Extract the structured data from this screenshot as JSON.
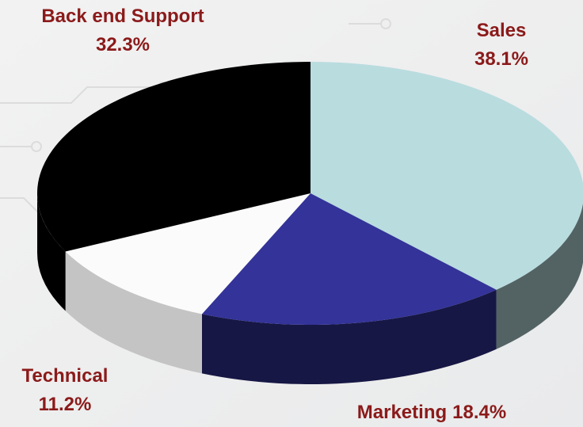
{
  "chart_data": {
    "type": "pie3d",
    "categories": [
      "Sales",
      "Marketing",
      "Technical",
      "Back end Support"
    ],
    "values": [
      38.1,
      18.4,
      11.2,
      32.3
    ],
    "value_labels": [
      "38.1%",
      "18.4%",
      "11.2%",
      "32.3%"
    ],
    "colors": [
      "#b9dcdf",
      "#333399",
      "#fbfbfb",
      "#000000"
    ],
    "label_color": "#8b1a1a"
  }
}
